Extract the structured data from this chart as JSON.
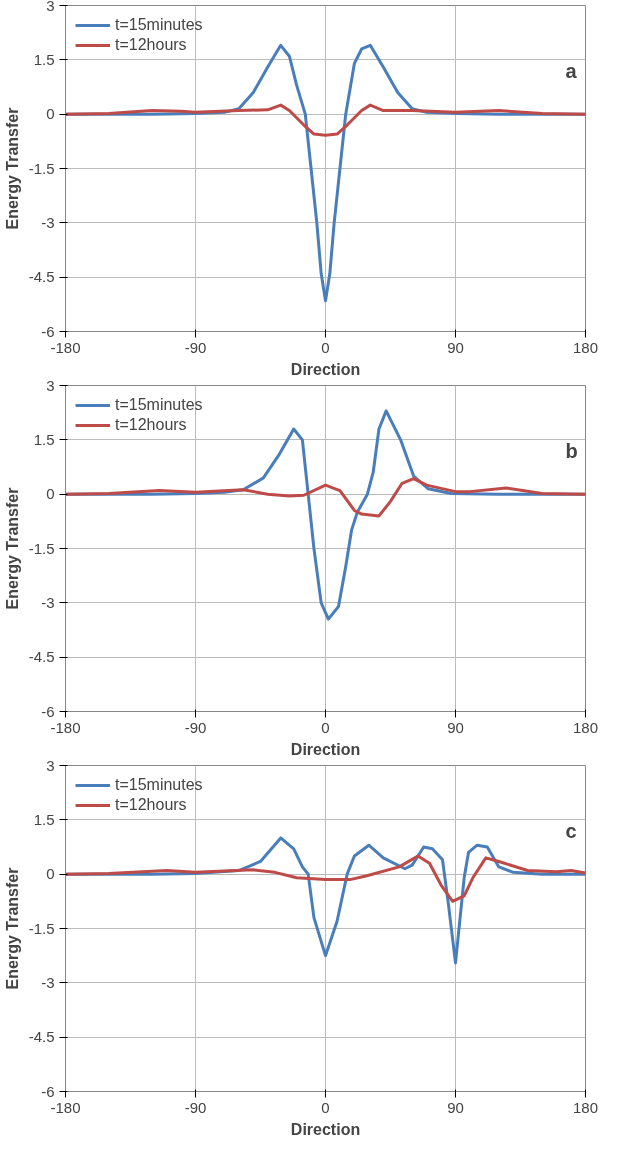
{
  "chart_data": [
    {
      "type": "line",
      "xlabel": "Direction",
      "ylabel": "Energy Transfer",
      "annotations": [
        "a"
      ],
      "xlim": [
        -180,
        180
      ],
      "xticks": [
        -180,
        -90,
        0,
        90,
        180
      ],
      "ylim": [
        -6,
        3
      ],
      "yticks": [
        -6,
        -4.5,
        -3,
        -1.5,
        0,
        1.5,
        3
      ],
      "grid": true,
      "legend": "top left",
      "line_style": "solid",
      "marker": "none",
      "series": [
        {
          "name": "t=15minutes",
          "color": "#4a7ebb",
          "x": [
            -180,
            -120,
            -90,
            -70,
            -60,
            -50,
            -40,
            -31,
            -25,
            -20,
            -14,
            -10,
            -6,
            -3,
            0,
            3,
            6,
            10,
            14,
            20,
            25,
            31,
            40,
            50,
            60,
            70,
            90,
            120,
            180
          ],
          "values": [
            0,
            0,
            0.02,
            0.05,
            0.15,
            0.6,
            1.3,
            1.9,
            1.6,
            0.8,
            0,
            -1.5,
            -3,
            -4.4,
            -5.15,
            -4.4,
            -3,
            -1.5,
            0,
            1.4,
            1.8,
            1.9,
            1.3,
            0.6,
            0.15,
            0.05,
            0.02,
            0,
            0
          ]
        },
        {
          "name": "t=12hours",
          "color": "#be4b48",
          "x": [
            -180,
            -150,
            -120,
            -100,
            -90,
            -60,
            -40,
            -31,
            -25,
            -15,
            -8,
            0,
            8,
            15,
            25,
            31,
            40,
            60,
            90,
            120,
            150,
            180
          ],
          "values": [
            0,
            0.02,
            0.1,
            0.08,
            0.05,
            0.1,
            0.12,
            0.25,
            0.1,
            -0.3,
            -0.55,
            -0.58,
            -0.55,
            -0.3,
            0.1,
            0.25,
            0.1,
            0.1,
            0.05,
            0.1,
            0.02,
            0
          ]
        }
      ]
    },
    {
      "type": "line",
      "xlabel": "Direction",
      "ylabel": "Energy Transfer",
      "annotations": [
        "b"
      ],
      "xlim": [
        -180,
        180
      ],
      "xticks": [
        -180,
        -90,
        0,
        90,
        180
      ],
      "ylim": [
        -6,
        3
      ],
      "yticks": [
        -6,
        -4.5,
        -3,
        -1.5,
        0,
        1.5,
        3
      ],
      "grid": true,
      "legend": "top left",
      "line_style": "solid",
      "marker": "none",
      "series": [
        {
          "name": "t=15minutes",
          "color": "#4a7ebb",
          "x": [
            -180,
            -120,
            -90,
            -70,
            -57,
            -43,
            -32,
            -22,
            -16,
            -12,
            -8,
            -3,
            2,
            9,
            14,
            18,
            22,
            29,
            33,
            37,
            42,
            52,
            61,
            71,
            87,
            120,
            180
          ],
          "values": [
            0,
            0,
            0.02,
            0.05,
            0.12,
            0.45,
            1.1,
            1.8,
            1.5,
            0,
            -1.5,
            -3,
            -3.45,
            -3.1,
            -2,
            -1,
            -0.5,
            0,
            0.6,
            1.8,
            2.3,
            1.5,
            0.5,
            0.15,
            0.02,
            0,
            0
          ]
        },
        {
          "name": "t=12hours",
          "color": "#be4b48",
          "x": [
            -180,
            -150,
            -115,
            -90,
            -57,
            -40,
            -25,
            -15,
            0,
            10,
            20,
            25,
            37,
            45,
            53,
            61,
            70,
            90,
            100,
            125,
            150,
            180
          ],
          "values": [
            0,
            0.02,
            0.1,
            0.05,
            0.12,
            0,
            -0.05,
            -0.03,
            0.25,
            0.1,
            -0.45,
            -0.55,
            -0.6,
            -0.2,
            0.3,
            0.43,
            0.25,
            0.07,
            0.07,
            0.17,
            0.02,
            0
          ]
        }
      ]
    },
    {
      "type": "line",
      "xlabel": "Direction",
      "ylabel": "Energy Transfer",
      "annotations": [
        "c"
      ],
      "xlim": [
        -180,
        180
      ],
      "xticks": [
        -180,
        -90,
        0,
        90,
        180
      ],
      "ylim": [
        -6,
        3
      ],
      "yticks": [
        -6,
        -4.5,
        -3,
        -1.5,
        0,
        1.5,
        3
      ],
      "grid": true,
      "legend": "top left",
      "line_style": "solid",
      "marker": "none",
      "series": [
        {
          "name": "t=15minutes",
          "color": "#4a7ebb",
          "x": [
            -180,
            -120,
            -90,
            -60,
            -45,
            -31,
            -22,
            -16,
            -12,
            -8,
            0,
            8,
            15,
            20,
            30,
            40,
            55,
            60,
            68,
            74,
            81,
            85,
            90,
            96,
            99,
            105,
            112,
            120,
            130,
            150,
            180
          ],
          "values": [
            0,
            0,
            0.02,
            0.1,
            0.35,
            1.0,
            0.7,
            0.2,
            0,
            -1.2,
            -2.25,
            -1.3,
            0,
            0.5,
            0.8,
            0.45,
            0.15,
            0.25,
            0.75,
            0.7,
            0.4,
            -0.8,
            -2.45,
            -0.1,
            0.6,
            0.8,
            0.75,
            0.2,
            0.05,
            0,
            0
          ]
        },
        {
          "name": "t=12hours",
          "color": "#be4b48",
          "x": [
            -180,
            -150,
            -110,
            -90,
            -50,
            -35,
            -20,
            0,
            17,
            28,
            51,
            64,
            72,
            80,
            88,
            96,
            102,
            111,
            120,
            140,
            160,
            170,
            180
          ],
          "values": [
            0,
            0.02,
            0.1,
            0.05,
            0.12,
            0.05,
            -0.1,
            -0.15,
            -0.15,
            -0.05,
            0.2,
            0.5,
            0.3,
            -0.3,
            -0.75,
            -0.6,
            -0.1,
            0.45,
            0.35,
            0.1,
            0.07,
            0.1,
            0.03
          ]
        }
      ]
    }
  ]
}
